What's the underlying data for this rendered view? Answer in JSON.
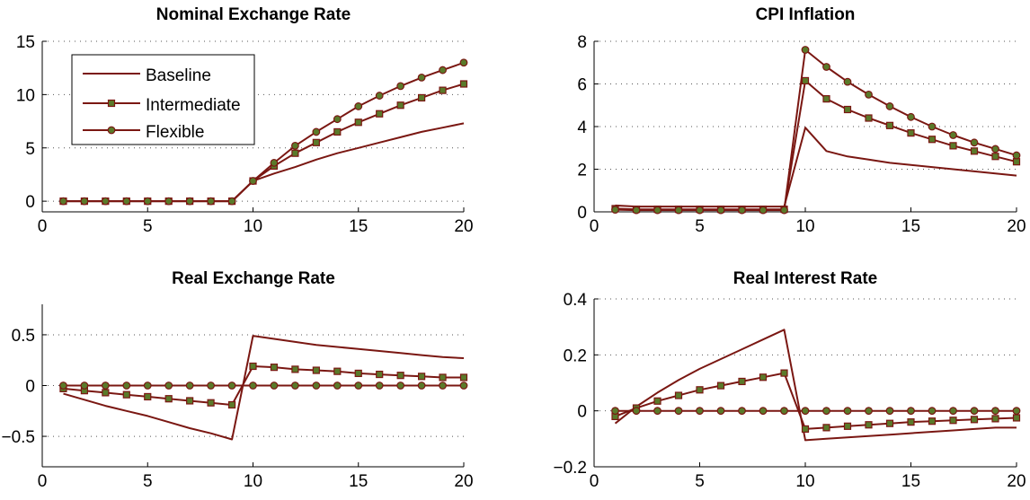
{
  "colors": {
    "line": "#7a1712",
    "marker_fill": "#5a7a2a",
    "grid": "#555555",
    "axis": "#000000"
  },
  "legend": {
    "placement": "upper-left of first panel",
    "entries": [
      {
        "label": "Baseline",
        "marker": "none"
      },
      {
        "label": "Intermediate",
        "marker": "square"
      },
      {
        "label": "Flexible",
        "marker": "circle"
      }
    ]
  },
  "chart_data": [
    {
      "type": "line",
      "title": "Nominal Exchange Rate",
      "xlabel": "",
      "ylabel": "",
      "xlim": [
        0,
        20
      ],
      "ylim": [
        -1,
        15
      ],
      "xticks": [
        0,
        5,
        10,
        15,
        20
      ],
      "xtick_labels": [
        "0",
        "5",
        "10",
        "15",
        "20"
      ],
      "yticks": [
        0,
        5,
        10,
        15
      ],
      "ytick_labels": [
        "0",
        "5",
        "10",
        "15"
      ],
      "grid": true,
      "x": [
        1,
        2,
        3,
        4,
        5,
        6,
        7,
        8,
        9,
        10,
        11,
        12,
        13,
        14,
        15,
        16,
        17,
        18,
        19,
        20
      ],
      "series": [
        {
          "name": "Baseline",
          "marker": "none",
          "values": [
            0,
            0,
            0,
            0,
            0,
            0,
            0,
            0,
            0,
            1.9,
            2.6,
            3.2,
            3.9,
            4.5,
            5.0,
            5.5,
            6.0,
            6.5,
            6.9,
            7.3
          ]
        },
        {
          "name": "Intermediate",
          "marker": "square",
          "values": [
            0,
            0,
            0,
            0,
            0,
            0,
            0,
            0,
            0,
            1.9,
            3.3,
            4.5,
            5.5,
            6.5,
            7.4,
            8.2,
            9.0,
            9.7,
            10.4,
            11.0
          ]
        },
        {
          "name": "Flexible",
          "marker": "circle",
          "values": [
            0,
            0,
            0,
            0,
            0,
            0,
            0,
            0,
            0,
            1.9,
            3.6,
            5.2,
            6.5,
            7.7,
            8.9,
            9.9,
            10.8,
            11.6,
            12.3,
            13.0
          ]
        }
      ]
    },
    {
      "type": "line",
      "title": "CPI Inflation",
      "xlabel": "",
      "ylabel": "",
      "xlim": [
        0,
        20
      ],
      "ylim": [
        0,
        8
      ],
      "xticks": [
        0,
        5,
        10,
        15,
        20
      ],
      "xtick_labels": [
        "0",
        "5",
        "10",
        "15",
        "20"
      ],
      "yticks": [
        0,
        2,
        4,
        6,
        8
      ],
      "ytick_labels": [
        "0",
        "2",
        "4",
        "6",
        "8"
      ],
      "grid": true,
      "x": [
        1,
        2,
        3,
        4,
        5,
        6,
        7,
        8,
        9,
        10,
        11,
        12,
        13,
        14,
        15,
        16,
        17,
        18,
        19,
        20
      ],
      "series": [
        {
          "name": "Baseline",
          "marker": "none",
          "values": [
            0.3,
            0.25,
            0.25,
            0.25,
            0.25,
            0.25,
            0.25,
            0.25,
            0.25,
            3.95,
            2.85,
            2.6,
            2.45,
            2.3,
            2.2,
            2.1,
            2.0,
            1.9,
            1.8,
            1.7
          ]
        },
        {
          "name": "Intermediate",
          "marker": "square",
          "values": [
            0.15,
            0.12,
            0.12,
            0.12,
            0.12,
            0.12,
            0.12,
            0.12,
            0.12,
            6.15,
            5.3,
            4.8,
            4.4,
            4.05,
            3.7,
            3.4,
            3.1,
            2.85,
            2.6,
            2.35
          ]
        },
        {
          "name": "Flexible",
          "marker": "circle",
          "values": [
            0.1,
            0.08,
            0.08,
            0.08,
            0.08,
            0.08,
            0.08,
            0.08,
            0.08,
            7.6,
            6.8,
            6.1,
            5.5,
            4.95,
            4.45,
            4.0,
            3.6,
            3.25,
            2.95,
            2.65
          ]
        }
      ]
    },
    {
      "type": "line",
      "title": "Real Exchange Rate",
      "xlabel": "",
      "ylabel": "",
      "xlim": [
        0,
        20
      ],
      "ylim": [
        -0.8,
        0.8
      ],
      "xticks": [
        0,
        5,
        10,
        15,
        20
      ],
      "xtick_labels": [
        "0",
        "5",
        "10",
        "15",
        "20"
      ],
      "yticks": [
        -0.5,
        0,
        0.5
      ],
      "ytick_labels": [
        "−0.5",
        "0",
        "0.5"
      ],
      "grid": true,
      "x": [
        1,
        2,
        3,
        4,
        5,
        6,
        7,
        8,
        9,
        10,
        11,
        12,
        13,
        14,
        15,
        16,
        17,
        18,
        19,
        20
      ],
      "series": [
        {
          "name": "Baseline",
          "marker": "none",
          "values": [
            -0.08,
            -0.14,
            -0.2,
            -0.25,
            -0.3,
            -0.36,
            -0.42,
            -0.47,
            -0.53,
            0.49,
            0.46,
            0.43,
            0.4,
            0.38,
            0.36,
            0.34,
            0.32,
            0.3,
            0.28,
            0.27
          ]
        },
        {
          "name": "Intermediate",
          "marker": "square",
          "values": [
            -0.03,
            -0.05,
            -0.07,
            -0.09,
            -0.11,
            -0.13,
            -0.15,
            -0.17,
            -0.19,
            0.19,
            0.18,
            0.16,
            0.15,
            0.14,
            0.12,
            0.11,
            0.1,
            0.09,
            0.08,
            0.08
          ]
        },
        {
          "name": "Flexible",
          "marker": "circle",
          "values": [
            0,
            0,
            0,
            0,
            0,
            0,
            0,
            0,
            0,
            0,
            0,
            0,
            0,
            0,
            0,
            0,
            0,
            0,
            0,
            0
          ]
        }
      ]
    },
    {
      "type": "line",
      "title": "Real Interest Rate",
      "xlabel": "",
      "ylabel": "",
      "xlim": [
        0,
        20
      ],
      "ylim": [
        -0.2,
        0.4
      ],
      "xticks": [
        0,
        5,
        10,
        15,
        20
      ],
      "xtick_labels": [
        "0",
        "5",
        "10",
        "15",
        "20"
      ],
      "yticks": [
        -0.2,
        0,
        0.2,
        0.4
      ],
      "ytick_labels": [
        "−0.2",
        "0",
        "0.2",
        "0.4"
      ],
      "grid": true,
      "x": [
        1,
        2,
        3,
        4,
        5,
        6,
        7,
        8,
        9,
        10,
        11,
        12,
        13,
        14,
        15,
        16,
        17,
        18,
        19,
        20
      ],
      "series": [
        {
          "name": "Baseline",
          "marker": "none",
          "values": [
            -0.045,
            0.015,
            0.065,
            0.11,
            0.15,
            0.185,
            0.22,
            0.255,
            0.29,
            -0.105,
            -0.1,
            -0.095,
            -0.09,
            -0.085,
            -0.08,
            -0.075,
            -0.07,
            -0.065,
            -0.06,
            -0.06
          ]
        },
        {
          "name": "Intermediate",
          "marker": "square",
          "values": [
            -0.02,
            0.01,
            0.035,
            0.055,
            0.075,
            0.09,
            0.105,
            0.12,
            0.135,
            -0.065,
            -0.06,
            -0.055,
            -0.05,
            -0.045,
            -0.04,
            -0.037,
            -0.034,
            -0.031,
            -0.028,
            -0.025
          ]
        },
        {
          "name": "Flexible",
          "marker": "circle",
          "values": [
            0,
            0,
            0,
            0,
            0,
            0,
            0,
            0,
            0,
            0,
            0,
            0,
            0,
            0,
            0,
            0,
            0,
            0,
            0,
            0
          ]
        }
      ]
    }
  ]
}
